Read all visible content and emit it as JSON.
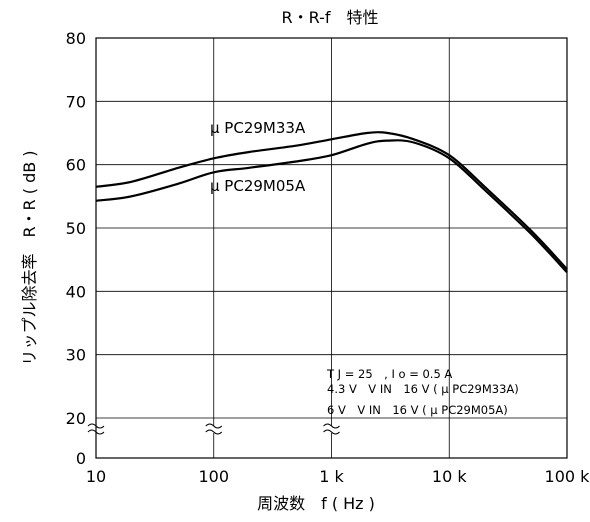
{
  "chart_data": {
    "type": "line",
    "title": "R・R-f　特性",
    "xlabel": "周波数　f ( Hz )",
    "ylabel": "リップル除去率　R・R ( dB )",
    "x_scale": "log",
    "xlim": [
      10,
      100000
    ],
    "ylim": [
      0,
      80
    ],
    "x_ticks": [
      10,
      100,
      1000,
      10000,
      100000
    ],
    "x_tick_labels": [
      "10",
      "100",
      "1 k",
      "10 k",
      "100 k"
    ],
    "y_ticks": [
      0,
      20,
      30,
      40,
      50,
      60,
      70,
      80
    ],
    "y_tick_labels": [
      "0",
      "20",
      "30",
      "40",
      "50",
      "60",
      "70",
      "80"
    ],
    "axis_break": "between 0 and 20",
    "grid": true,
    "series": [
      {
        "name": "μ PC29M33A",
        "x": [
          10,
          20,
          50,
          100,
          200,
          500,
          1000,
          2000,
          3000,
          5000,
          10000,
          20000,
          50000,
          100000
        ],
        "y": [
          56.5,
          57.3,
          59.5,
          61.0,
          62.0,
          63.0,
          64.0,
          65.0,
          65.0,
          64.0,
          61.5,
          56.5,
          49.5,
          43.5
        ]
      },
      {
        "name": "μ PC29M05A",
        "x": [
          10,
          20,
          50,
          100,
          200,
          500,
          1000,
          2000,
          3000,
          5000,
          10000,
          20000,
          50000,
          100000
        ],
        "y": [
          54.3,
          55.0,
          57.0,
          58.8,
          59.5,
          60.5,
          61.5,
          63.3,
          63.8,
          63.5,
          61.0,
          56.0,
          49.0,
          43.0
        ]
      }
    ],
    "series_labels": [
      "μ PC29M33A",
      "μ PC29M05A"
    ],
    "conditions": [
      "T J = 25　, I o = 0.5 A",
      "4.3 V　V IN　16 V ( μ PC29M33A)",
      "6 V　V IN　16 V ( μ PC29M05A)"
    ]
  }
}
